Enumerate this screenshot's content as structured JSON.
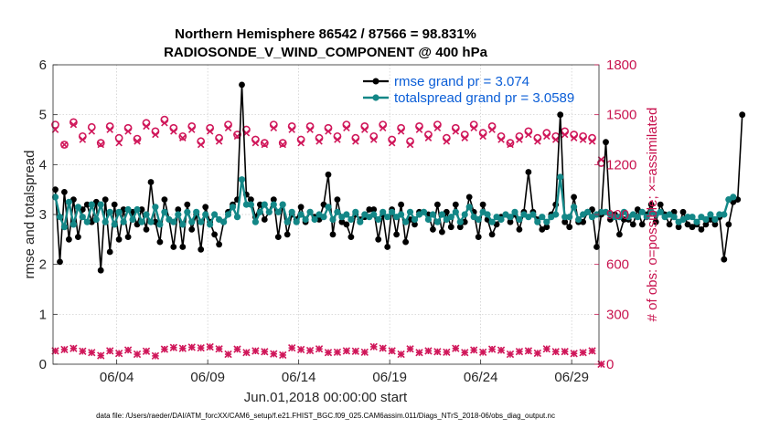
{
  "chart_data": {
    "type": "line",
    "title_line1": "Northern Hemisphere 86542 / 87566 = 98.831%",
    "title_line2": "RADIOSONDE_V_WIND_COMPONENT @ 400 hPa",
    "xlabel": "Jun.01,2018 00:00:00 start",
    "ylabel": "rmse and totalspread",
    "y2label": "# of obs: o=possible; ×=assimilated",
    "footnote": "data file: /Users/raeder/DAI/ATM_forcXX/CAM6_setup/f.e21.FHIST_BGC.f09_025.CAM6assim.011/Diags_NTrS_2018-06/obs_diag_output.nc",
    "x_tick_labels": [
      "06/04",
      "06/09",
      "06/14",
      "06/19",
      "06/24",
      "06/29"
    ],
    "x_tick_days": [
      3.5,
      8.5,
      13.5,
      18.5,
      23.5,
      28.5
    ],
    "xlim": [
      0.0,
      30.0
    ],
    "ylim": [
      0,
      6
    ],
    "y_ticks": [
      "0",
      "1",
      "2",
      "3",
      "4",
      "5",
      "6"
    ],
    "y2lim": [
      0,
      1800
    ],
    "y2_ticks": [
      "0",
      "300",
      "600",
      "900",
      "1200",
      "1500",
      "1800"
    ],
    "grid": true,
    "legend_position": "top-right",
    "colors": {
      "rmse": "#000000",
      "spread": "#138787",
      "obs": "#d0175a",
      "legend_text": "#0b5ed7"
    },
    "series": [
      {
        "name": "rmse grand pr = 3.074",
        "x_start": 0.125,
        "x_step": 0.25,
        "values": [
          3.5,
          2.05,
          3.45,
          2.5,
          3.3,
          2.55,
          3.1,
          3.2,
          2.85,
          3.25,
          1.88,
          3.3,
          2.25,
          3.2,
          2.5,
          3.1,
          2.55,
          3.05,
          2.8,
          3.1,
          2.7,
          3.65,
          2.85,
          2.45,
          3.3,
          2.9,
          2.35,
          3.1,
          2.35,
          3.2,
          2.7,
          3.0,
          2.3,
          3.15,
          2.85,
          2.6,
          2.4,
          2.85,
          3.05,
          3.2,
          3.3,
          5.6,
          3.4,
          3.3,
          2.95,
          3.2,
          2.9,
          3.05,
          3.3,
          2.55,
          3.2,
          2.6,
          3.0,
          2.9,
          3.15,
          2.85,
          3.05,
          2.95,
          2.9,
          3.2,
          3.8,
          2.6,
          3.3,
          2.85,
          2.8,
          2.55,
          3.0,
          2.9,
          2.95,
          3.1,
          3.1,
          2.5,
          3.0,
          2.35,
          3.1,
          2.6,
          3.2,
          2.45,
          2.9,
          2.8,
          3.05,
          3.05,
          3.0,
          2.7,
          3.2,
          2.65,
          3.05,
          2.75,
          3.2,
          2.75,
          2.85,
          3.35,
          3.05,
          2.55,
          3.2,
          2.9,
          2.6,
          2.8,
          2.95,
          3.0,
          2.85,
          3.0,
          2.7,
          3.05,
          3.85,
          3.05,
          2.9,
          2.7,
          2.75,
          3.0,
          3.2,
          5.0,
          2.85,
          2.75,
          3.35,
          2.85,
          2.85,
          3.05,
          3.1,
          2.35,
          3.0,
          4.45,
          2.9,
          3.0,
          2.6,
          2.9,
          2.9,
          2.8,
          3.1,
          2.8,
          3.0,
          3.2,
          2.85,
          3.2,
          3.0,
          2.8,
          3.05,
          2.75,
          3.05,
          2.8,
          2.75,
          2.8,
          2.7,
          2.8,
          2.9,
          2.8,
          2.95,
          2.1,
          2.8,
          3.25,
          3.3,
          5.0
        ]
      },
      {
        "name": "totalspread grand pr = 3.0589",
        "x_start": 0.125,
        "x_step": 0.25,
        "values": [
          3.35,
          2.95,
          2.75,
          3.25,
          2.8,
          3.15,
          2.95,
          2.85,
          3.2,
          2.9,
          3.2,
          2.85,
          3.05,
          2.8,
          3.05,
          2.85,
          3.1,
          2.9,
          3.1,
          2.85,
          3.0,
          2.85,
          3.15,
          2.8,
          3.05,
          2.9,
          2.85,
          3.0,
          2.8,
          3.05,
          2.85,
          3.05,
          2.85,
          3.0,
          2.8,
          3.0,
          2.9,
          2.85,
          3.0,
          3.15,
          2.95,
          3.7,
          3.2,
          3.2,
          2.85,
          3.05,
          3.2,
          3.05,
          3.2,
          3.05,
          3.2,
          2.85,
          3.05,
          2.85,
          3.0,
          2.9,
          3.05,
          2.9,
          3.0,
          2.95,
          3.15,
          2.9,
          3.05,
          2.95,
          3.0,
          2.9,
          3.05,
          2.85,
          3.0,
          2.95,
          3.0,
          2.9,
          3.05,
          2.95,
          3.05,
          2.95,
          3.0,
          2.85,
          3.05,
          2.9,
          3.0,
          3.05,
          2.9,
          3.0,
          2.85,
          3.0,
          2.9,
          2.95,
          3.05,
          2.85,
          3.0,
          3.15,
          2.95,
          2.9,
          3.05,
          3.0,
          2.85,
          2.95,
          2.9,
          3.0,
          2.95,
          3.05,
          2.9,
          3.0,
          2.95,
          3.0,
          2.85,
          2.95,
          2.85,
          2.95,
          3.0,
          3.75,
          2.95,
          2.95,
          3.15,
          2.9,
          3.0,
          3.05,
          2.95,
          3.0,
          3.05,
          3.05,
          3.0,
          2.95,
          2.95,
          3.05,
          2.95,
          3.0,
          2.95,
          3.05,
          2.95,
          3.05,
          3.0,
          3.05,
          2.95,
          3.0,
          2.95,
          2.85,
          2.9,
          2.95,
          2.95,
          2.85,
          2.95,
          2.9,
          3.0,
          2.9,
          3.0,
          3.0,
          3.3,
          3.35
        ]
      }
    ],
    "obs_possible": {
      "x_start": 0.125,
      "x_step": 0.5,
      "values": [
        1440,
        1320,
        1455,
        1370,
        1425,
        1330,
        1430,
        1360,
        1420,
        1355,
        1450,
        1400,
        1470,
        1420,
        1370,
        1430,
        1340,
        1420,
        1360,
        1440,
        1380,
        1410,
        1350,
        1330,
        1440,
        1330,
        1430,
        1350,
        1430,
        1360,
        1420,
        1370,
        1440,
        1360,
        1430,
        1370,
        1440,
        1350,
        1420,
        1340,
        1430,
        1380,
        1440,
        1360,
        1420,
        1380,
        1440,
        1390,
        1430,
        1370,
        1330,
        1370,
        1400,
        1360,
        1390,
        1370,
        1400,
        1380,
        1370,
        1360,
        1210
      ]
    },
    "obs_assimilated": {
      "x_start": 0.125,
      "x_step": 0.5,
      "values": [
        1410,
        1320,
        1440,
        1350,
        1400,
        1320,
        1410,
        1330,
        1400,
        1340,
        1430,
        1380,
        1450,
        1400,
        1360,
        1410,
        1320,
        1400,
        1340,
        1420,
        1370,
        1390,
        1330,
        1320,
        1420,
        1320,
        1410,
        1330,
        1410,
        1340,
        1400,
        1350,
        1420,
        1340,
        1410,
        1350,
        1420,
        1330,
        1400,
        1320,
        1410,
        1360,
        1420,
        1340,
        1400,
        1360,
        1420,
        1370,
        1410,
        1350,
        1320,
        1350,
        1380,
        1340,
        1370,
        1350,
        1380,
        1360,
        1350,
        1340,
        1230
      ]
    },
    "obs_low": {
      "x_start": 0.125,
      "x_step": 0.5,
      "values": [
        80,
        88,
        95,
        78,
        70,
        52,
        80,
        65,
        85,
        60,
        78,
        50,
        90,
        100,
        95,
        102,
        98,
        104,
        92,
        60,
        90,
        70,
        80,
        75,
        62,
        55,
        98,
        88,
        82,
        92,
        70,
        72,
        80,
        78,
        72,
        105,
        96,
        80,
        60,
        92,
        70,
        80,
        75,
        72,
        95,
        70,
        85,
        72,
        90,
        84,
        60,
        76,
        80,
        66,
        92,
        75,
        76,
        64,
        70,
        80,
        0
      ]
    }
  }
}
